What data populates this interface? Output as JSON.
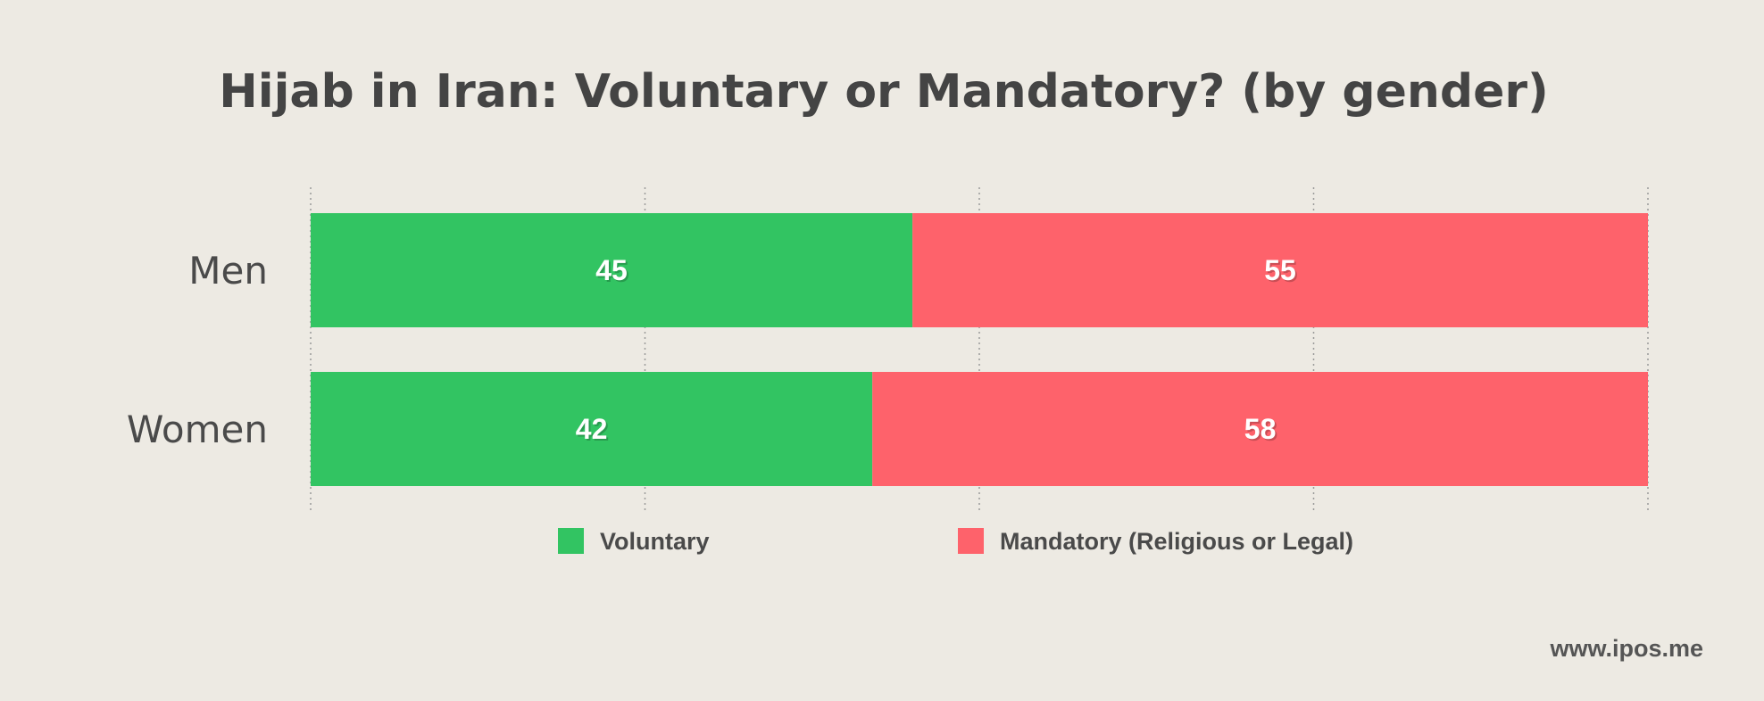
{
  "chart_data": {
    "type": "bar",
    "stacked": true,
    "orientation": "horizontal",
    "title": "Hijab in Iran: Voluntary or Mandatory? (by gender)",
    "categories": [
      "Men",
      "Women"
    ],
    "series": [
      {
        "name": "Voluntary",
        "values": [
          45,
          42
        ],
        "color": "#32c462"
      },
      {
        "name": "Mandatory (Religious or Legal)",
        "values": [
          55,
          58
        ],
        "color": "#fe626b"
      }
    ],
    "xlim": [
      0,
      100
    ],
    "grid": true,
    "legend_position": "bottom"
  },
  "watermark": "www.ipos.me"
}
